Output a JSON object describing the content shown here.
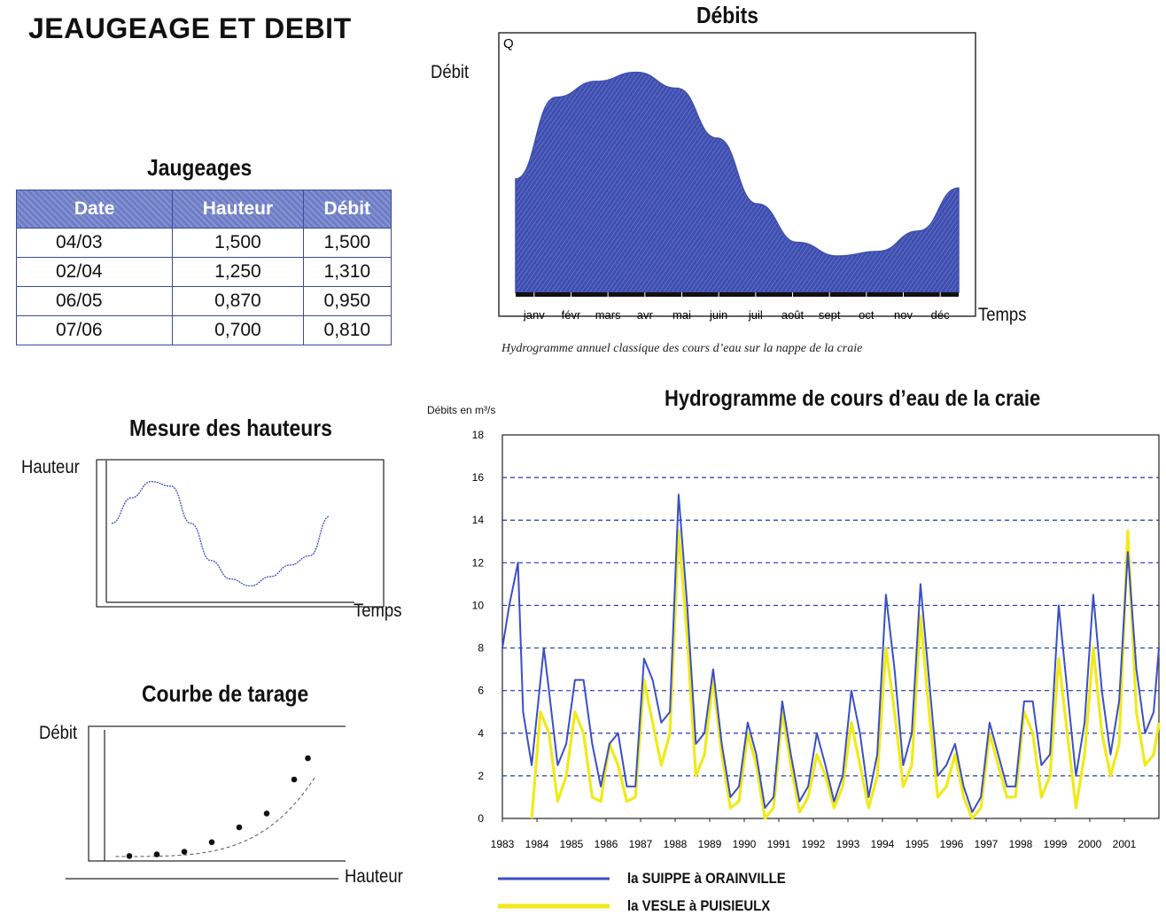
{
  "page_title": "JEAUGEAGE ET DEBIT",
  "jaugeages": {
    "title": "Jaugeages",
    "headers": [
      "Date",
      "Hauteur",
      "Débit"
    ],
    "rows": [
      [
        "04/03",
        "1,500",
        "1,500"
      ],
      [
        "02/04",
        "1,250",
        "1,310"
      ],
      [
        "06/05",
        "0,870",
        "0,950"
      ],
      [
        "07/06",
        "0,700",
        "0,810"
      ]
    ]
  },
  "mesure": {
    "title": "Mesure des hauteurs",
    "ylabel": "Hauteur",
    "xlabel": "Temps"
  },
  "tarage": {
    "title": "Courbe de tarage",
    "ylabel": "Débit",
    "xlabel": "Hauteur"
  },
  "debits": {
    "title": "Débits",
    "ylabel": "Débit",
    "q_label": "Q",
    "xlabel": "Temps",
    "caption": "Hydrogramme annuel classique des cours d’eau sur la nappe de la craie"
  },
  "hydro": {
    "title": "Hydrogramme de cours d’eau de la craie",
    "ylabel": "Débits en m³/s"
  },
  "colors": {
    "fill_blue": "#3f4fb0",
    "suippe": "#3a4fc4",
    "vesle": "#f0ea1a",
    "grid": "#2233bb",
    "table_header": "#6d7cc6"
  },
  "chart_data": [
    {
      "id": "debits",
      "type": "area",
      "categories": [
        "janv",
        "févr",
        "mars",
        "avr",
        "mai",
        "juin",
        "juil",
        "août",
        "sept",
        "oct",
        "nov",
        "déc"
      ],
      "values": [
        5.0,
        8.6,
        9.3,
        9.7,
        9.0,
        6.8,
        3.9,
        2.2,
        1.6,
        1.8,
        2.7,
        4.6
      ],
      "ylim": [
        0,
        10
      ]
    },
    {
      "id": "mesure",
      "type": "line",
      "x": [
        0,
        1,
        2,
        3,
        4,
        5,
        6,
        7,
        8,
        9,
        10,
        11
      ],
      "values": [
        6.2,
        8.4,
        9.8,
        9.4,
        6.2,
        3.0,
        1.4,
        0.8,
        1.6,
        2.6,
        3.4,
        6.8
      ],
      "ylim": [
        0,
        11
      ]
    },
    {
      "id": "tarage",
      "type": "scatter",
      "x": [
        1,
        2,
        3,
        4,
        5,
        6,
        7,
        7.5
      ],
      "y": [
        0.3,
        0.45,
        0.7,
        1.6,
        3.0,
        4.3,
        7.5,
        9.5
      ],
      "ylim": [
        0,
        11
      ]
    },
    {
      "id": "hydro",
      "type": "line",
      "xlim": [
        1983,
        2002
      ],
      "ylim": [
        0,
        18
      ],
      "x_ticks": [
        "1983",
        "1984",
        "1985",
        "1986",
        "1987",
        "1988",
        "1989",
        "1990",
        "1991",
        "1992",
        "1993",
        "1994",
        "1995",
        "1996",
        "1997",
        "1998",
        "1999",
        "2000",
        "2001"
      ],
      "y_ticks": [
        "0",
        "2",
        "4",
        "6",
        "8",
        "10",
        "12",
        "14",
        "16",
        "18"
      ],
      "series": [
        {
          "name": "la SUIPPE à ORAINVILLE",
          "x": [
            1983.0,
            1983.2,
            1983.45,
            1983.6,
            1983.85,
            1984.2,
            1984.35,
            1984.6,
            1984.85,
            1985.1,
            1985.35,
            1985.6,
            1985.85,
            1986.1,
            1986.35,
            1986.6,
            1986.85,
            1987.1,
            1987.35,
            1987.6,
            1987.85,
            1988.1,
            1988.35,
            1988.6,
            1988.85,
            1989.1,
            1989.35,
            1989.6,
            1989.85,
            1990.1,
            1990.35,
            1990.6,
            1990.85,
            1991.1,
            1991.35,
            1991.6,
            1991.85,
            1992.1,
            1992.35,
            1992.6,
            1992.85,
            1993.1,
            1993.35,
            1993.6,
            1993.85,
            1994.1,
            1994.35,
            1994.6,
            1994.85,
            1995.1,
            1995.35,
            1995.6,
            1995.85,
            1996.1,
            1996.35,
            1996.6,
            1996.85,
            1997.1,
            1997.35,
            1997.6,
            1997.85,
            1998.1,
            1998.35,
            1998.6,
            1998.85,
            1999.1,
            1999.35,
            1999.6,
            1999.85,
            2000.1,
            2000.35,
            2000.6,
            2000.85,
            2001.1,
            2001.35,
            2001.6,
            2001.85,
            2002.0
          ],
          "y": [
            8.0,
            10.0,
            12.0,
            5.0,
            2.5,
            8.0,
            6.0,
            2.5,
            3.5,
            6.5,
            6.5,
            3.5,
            1.5,
            3.5,
            4.0,
            1.5,
            1.5,
            7.5,
            6.5,
            4.5,
            5.0,
            15.2,
            10.0,
            3.5,
            4.0,
            7.0,
            3.5,
            1.0,
            1.5,
            4.5,
            3.0,
            0.5,
            1.0,
            5.5,
            3.0,
            0.8,
            1.5,
            4.0,
            2.5,
            0.8,
            2.0,
            6.0,
            4.0,
            1.0,
            3.0,
            10.5,
            7.0,
            2.5,
            4.0,
            11.0,
            6.5,
            2.0,
            2.5,
            3.5,
            1.5,
            0.3,
            1.0,
            4.5,
            3.0,
            1.5,
            1.5,
            5.5,
            5.5,
            2.5,
            3.0,
            10.0,
            6.0,
            2.0,
            4.5,
            10.5,
            6.0,
            3.0,
            5.5,
            12.5,
            7.0,
            4.0,
            5.0,
            8.0
          ]
        },
        {
          "name": "la VESLE à PUISIEULX",
          "x": [
            1983.85,
            1984.1,
            1984.35,
            1984.6,
            1984.85,
            1985.1,
            1985.35,
            1985.6,
            1985.85,
            1986.1,
            1986.35,
            1986.6,
            1986.85,
            1987.1,
            1987.35,
            1987.6,
            1987.85,
            1988.1,
            1988.35,
            1988.6,
            1988.85,
            1989.1,
            1989.35,
            1989.6,
            1989.85,
            1990.1,
            1990.35,
            1990.6,
            1990.85,
            1991.1,
            1991.35,
            1991.6,
            1991.85,
            1992.1,
            1992.35,
            1992.6,
            1992.85,
            1993.1,
            1993.35,
            1993.6,
            1993.85,
            1994.1,
            1994.35,
            1994.6,
            1994.85,
            1995.1,
            1995.35,
            1995.6,
            1995.85,
            1996.1,
            1996.35,
            1996.6,
            1996.85,
            1997.1,
            1997.35,
            1997.6,
            1997.85,
            1998.1,
            1998.35,
            1998.6,
            1998.85,
            1999.1,
            1999.35,
            1999.6,
            1999.85,
            2000.1,
            2000.35,
            2000.6,
            2000.85,
            2001.1,
            2001.35,
            2001.6,
            2001.85,
            2002.0
          ],
          "y": [
            0.0,
            5.0,
            4.0,
            0.8,
            2.0,
            5.0,
            4.0,
            1.0,
            0.8,
            3.5,
            2.5,
            0.8,
            1.0,
            6.5,
            4.5,
            2.5,
            4.0,
            13.5,
            8.5,
            2.0,
            3.0,
            6.5,
            3.0,
            0.5,
            0.8,
            4.0,
            2.5,
            0.0,
            0.5,
            5.0,
            2.5,
            0.3,
            1.0,
            3.0,
            2.0,
            0.5,
            1.5,
            4.5,
            2.5,
            0.5,
            2.0,
            8.0,
            5.0,
            1.5,
            2.5,
            9.5,
            5.0,
            1.0,
            1.5,
            3.0,
            1.0,
            0.0,
            0.5,
            4.0,
            2.5,
            1.0,
            1.0,
            5.0,
            4.0,
            1.0,
            2.0,
            7.5,
            4.0,
            0.5,
            3.0,
            8.0,
            4.0,
            2.0,
            3.5,
            13.5,
            5.0,
            2.5,
            3.0,
            4.5
          ]
        }
      ]
    }
  ]
}
